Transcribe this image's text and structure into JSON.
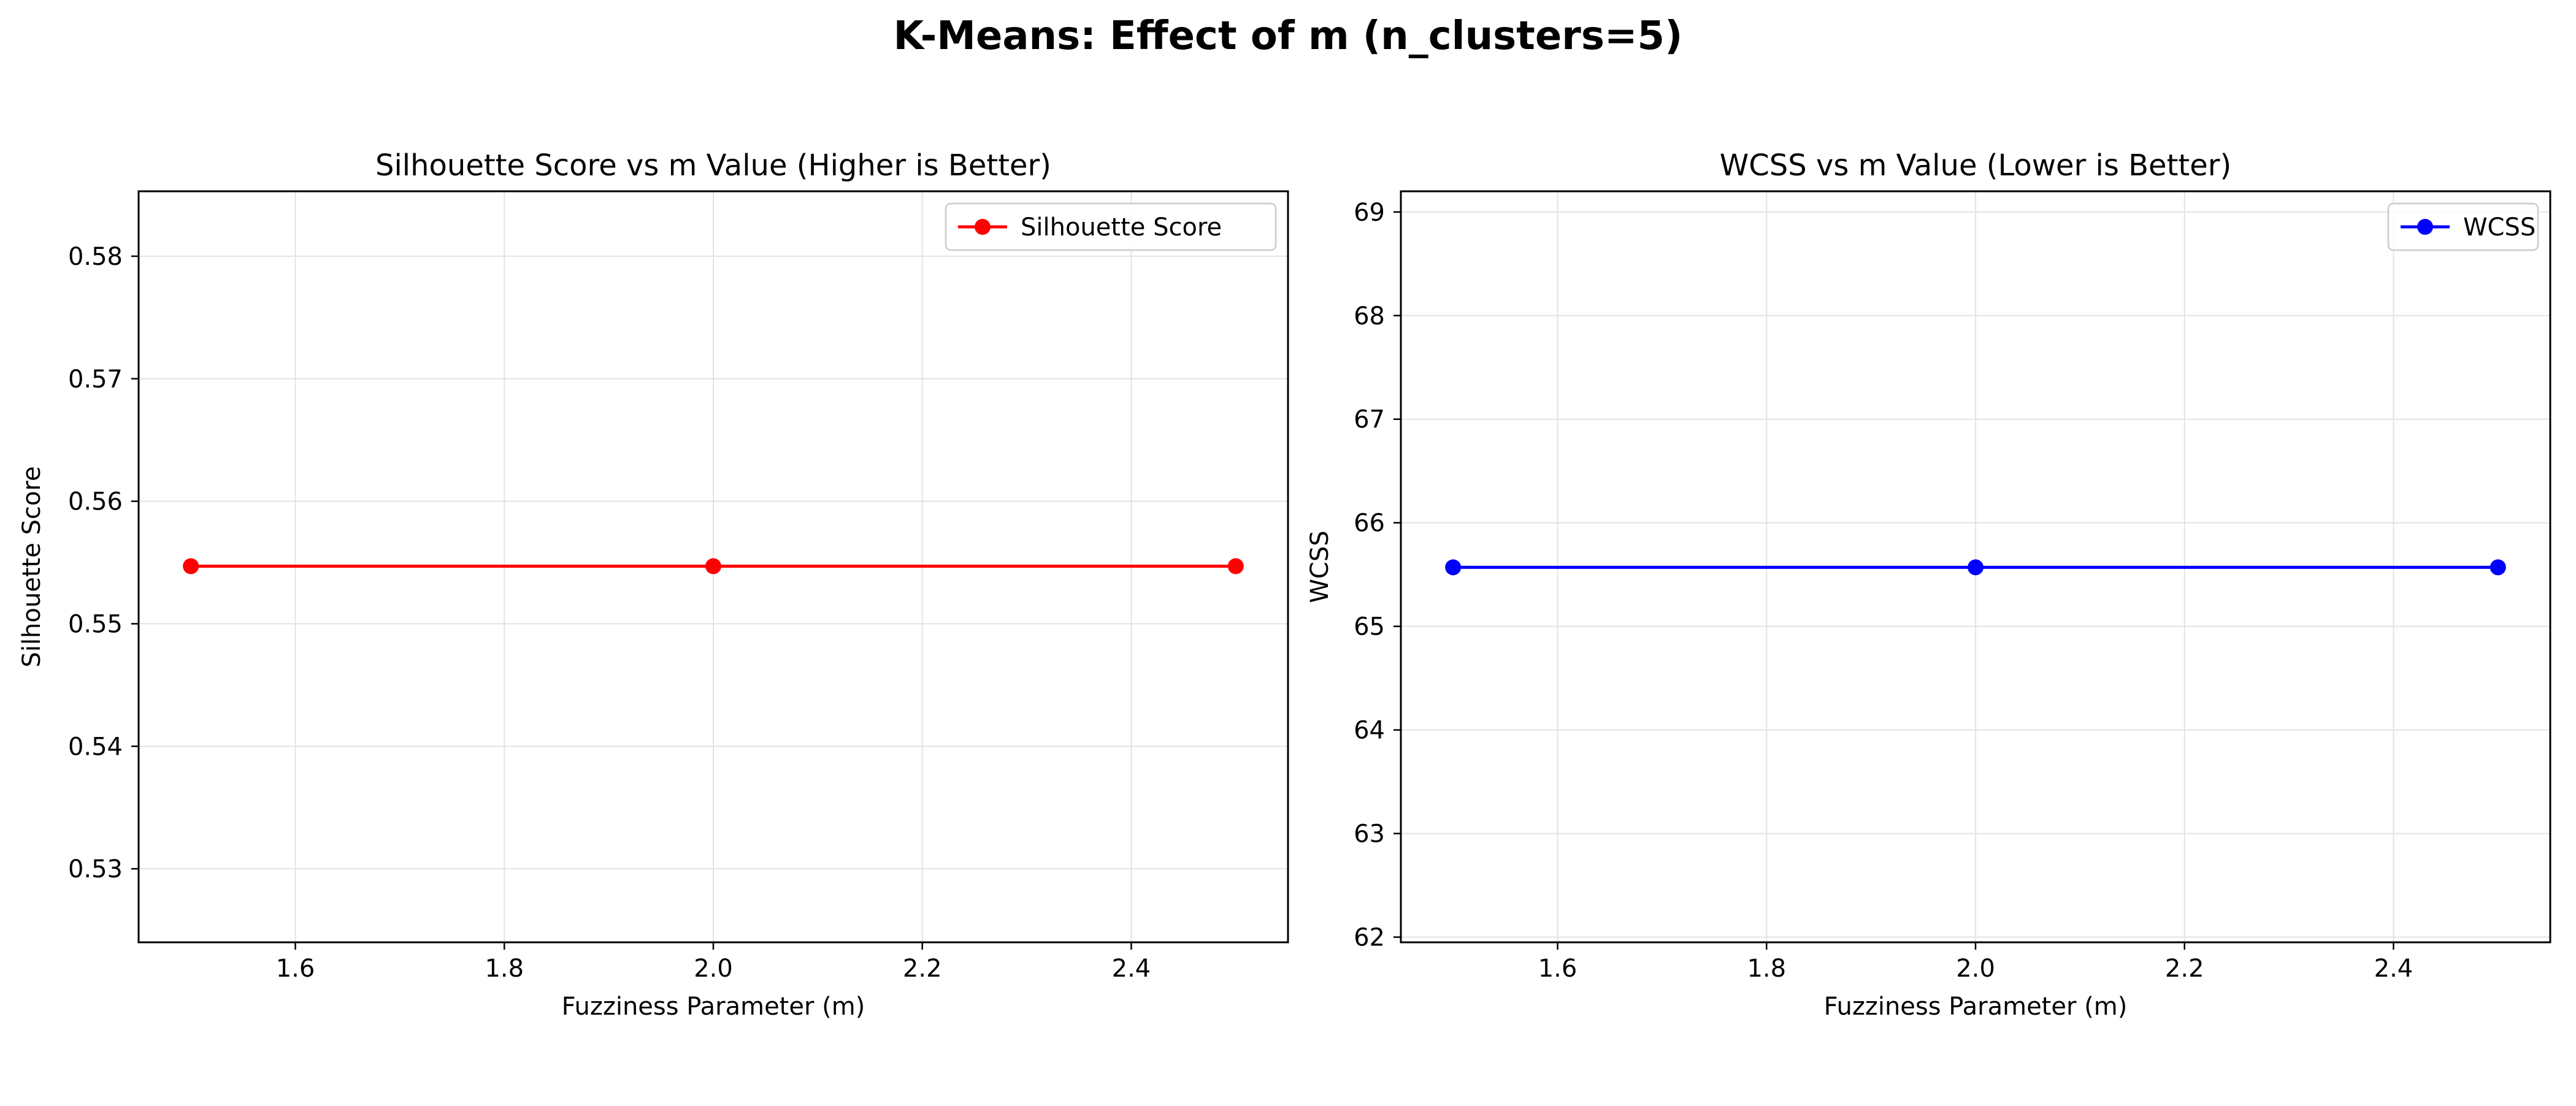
{
  "figure": {
    "title": "K-Means: Effect of m (n_clusters=5)"
  },
  "chart_data": [
    {
      "type": "line",
      "title": "Silhouette Score vs m Value (Higher is Better)",
      "xlabel": "Fuzziness Parameter (m)",
      "ylabel": "Silhouette Score",
      "xlim": [
        1.45,
        2.55
      ],
      "ylim": [
        0.524,
        0.5853
      ],
      "xticks": [
        1.6,
        1.8,
        2.0,
        2.2,
        2.4
      ],
      "xtick_labels": [
        "1.6",
        "1.8",
        "2.0",
        "2.2",
        "2.4"
      ],
      "yticks": [
        0.53,
        0.54,
        0.55,
        0.56,
        0.57,
        0.58
      ],
      "ytick_labels": [
        "0.53",
        "0.54",
        "0.55",
        "0.56",
        "0.57",
        "0.58"
      ],
      "grid": true,
      "legend": "top-right",
      "series": [
        {
          "name": "Silhouette Score",
          "color": "#ff0000",
          "marker": "circle",
          "x": [
            1.5,
            2.0,
            2.5
          ],
          "y": [
            0.5547,
            0.5547,
            0.5547
          ]
        }
      ]
    },
    {
      "type": "line",
      "title": "WCSS vs m Value (Lower is Better)",
      "xlabel": "Fuzziness Parameter (m)",
      "ylabel": "WCSS",
      "xlim": [
        1.45,
        2.55
      ],
      "ylim": [
        61.95,
        69.2
      ],
      "xticks": [
        1.6,
        1.8,
        2.0,
        2.2,
        2.4
      ],
      "xtick_labels": [
        "1.6",
        "1.8",
        "2.0",
        "2.2",
        "2.4"
      ],
      "yticks": [
        62,
        63,
        64,
        65,
        66,
        67,
        68,
        69
      ],
      "ytick_labels": [
        "62",
        "63",
        "64",
        "65",
        "66",
        "67",
        "68",
        "69"
      ],
      "grid": true,
      "legend": "top-right",
      "series": [
        {
          "name": "WCSS",
          "color": "#0000ff",
          "marker": "circle",
          "x": [
            1.5,
            2.0,
            2.5
          ],
          "y": [
            65.57,
            65.57,
            65.57
          ]
        }
      ]
    }
  ]
}
